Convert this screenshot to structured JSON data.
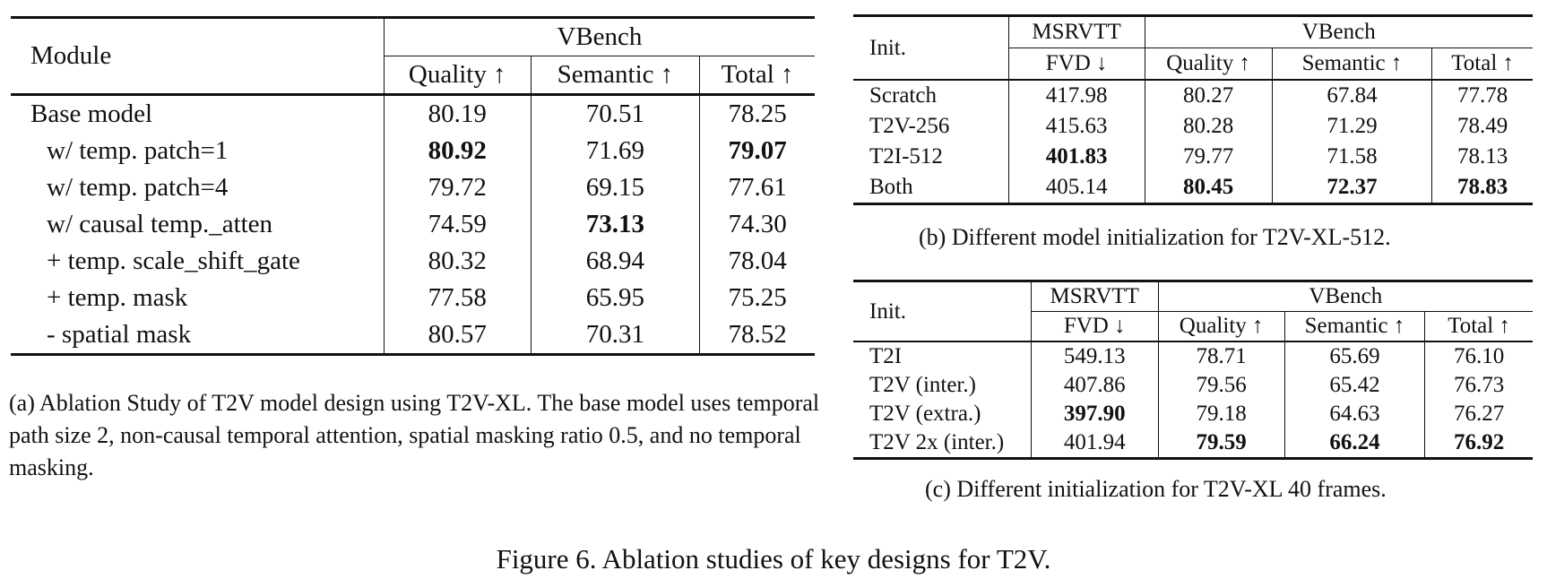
{
  "table_a": {
    "header": {
      "module": "Module",
      "group": "VBench",
      "quality": "Quality ↑",
      "semantic": "Semantic ↑",
      "total": "Total ↑"
    },
    "rows": [
      {
        "module": "Base model",
        "quality": "80.19",
        "semantic": "70.51",
        "total": "78.25"
      },
      {
        "module": "w/ temp. patch=1",
        "quality": "80.92",
        "semantic": "71.69",
        "total": "79.07"
      },
      {
        "module": "w/ temp. patch=4",
        "quality": "79.72",
        "semantic": "69.15",
        "total": "77.61"
      },
      {
        "module": "w/ causal temp._atten",
        "quality": "74.59",
        "semantic": "73.13",
        "total": "74.30"
      },
      {
        "module": "+ temp. scale_shift_gate",
        "quality": "80.32",
        "semantic": "68.94",
        "total": "78.04"
      },
      {
        "module": "+ temp. mask",
        "quality": "77.58",
        "semantic": "65.95",
        "total": "75.25"
      },
      {
        "module": "- spatial mask",
        "quality": "80.57",
        "semantic": "70.31",
        "total": "78.52"
      }
    ],
    "caption": "(a) Ablation Study of T2V model design using T2V-XL. The base model uses temporal path size 2, non-causal temporal attention, spatial masking ratio 0.5, and no temporal masking."
  },
  "table_b": {
    "header": {
      "init": "Init.",
      "group1": "MSRVTT",
      "group2": "VBench",
      "fvd": "FVD ↓",
      "quality": "Quality ↑",
      "semantic": "Semantic ↑",
      "total": "Total ↑"
    },
    "rows": [
      {
        "init": "Scratch",
        "fvd": "417.98",
        "quality": "80.27",
        "semantic": "67.84",
        "total": "77.78"
      },
      {
        "init": "T2V-256",
        "fvd": "415.63",
        "quality": "80.28",
        "semantic": "71.29",
        "total": "78.49"
      },
      {
        "init": "T2I-512",
        "fvd": "401.83",
        "quality": "79.77",
        "semantic": "71.58",
        "total": "78.13"
      },
      {
        "init": "Both",
        "fvd": "405.14",
        "quality": "80.45",
        "semantic": "72.37",
        "total": "78.83"
      }
    ],
    "caption": "(b) Different model initialization for T2V-XL-512."
  },
  "table_c": {
    "header": {
      "init": "Init.",
      "group1": "MSRVTT",
      "group2": "VBench",
      "fvd": "FVD ↓",
      "quality": "Quality ↑",
      "semantic": "Semantic ↑",
      "total": "Total ↑"
    },
    "rows": [
      {
        "init": "T2I",
        "fvd": "549.13",
        "quality": "78.71",
        "semantic": "65.69",
        "total": "76.10"
      },
      {
        "init": "T2V (inter.)",
        "fvd": "407.86",
        "quality": "79.56",
        "semantic": "65.42",
        "total": "76.73"
      },
      {
        "init": "T2V (extra.)",
        "fvd": "397.90",
        "quality": "79.18",
        "semantic": "64.63",
        "total": "76.27"
      },
      {
        "init": "T2V 2x (inter.)",
        "fvd": "401.94",
        "quality": "79.59",
        "semantic": "66.24",
        "total": "76.92"
      }
    ],
    "caption": "(c) Different initialization for T2V-XL 40 frames."
  },
  "figure_caption": "Figure 6. Ablation studies of key designs for T2V."
}
